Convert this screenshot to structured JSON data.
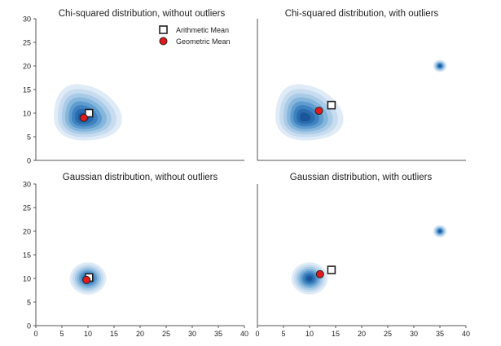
{
  "figure": {
    "legend": {
      "arithmetic_label": "Arithmetic Mean",
      "geometric_label": "Geometric Mean",
      "placement": "top-right of top-left panel"
    },
    "colors": {
      "density_light": "#dbe9f6",
      "density_dark": "#1f5fa6",
      "geometric_marker": "#e31a1c",
      "arithmetic_marker": "#ffffff",
      "axis": "#444444"
    }
  },
  "chart_data": [
    {
      "type": "heatmap",
      "title": "Chi-squared distribution, without outliers",
      "xlim": [
        0,
        40
      ],
      "ylim": [
        0,
        30
      ],
      "xticks": [],
      "yticks": [
        "0",
        "5",
        "10",
        "15",
        "20",
        "25",
        "30"
      ],
      "grid": false,
      "clusters": [
        {
          "x": 9,
          "y": 9,
          "sx": 6,
          "sy": 5.2,
          "skew": 1
        }
      ],
      "arithmetic_mean": {
        "x": 10.2,
        "y": 10.0
      },
      "geometric_mean": {
        "x": 9.2,
        "y": 9.0
      }
    },
    {
      "type": "heatmap",
      "title": "Chi-squared distribution, with outliers",
      "xlim": [
        0,
        40
      ],
      "ylim": [
        0,
        30
      ],
      "xticks": [],
      "yticks": [],
      "grid": false,
      "clusters": [
        {
          "x": 9,
          "y": 9,
          "sx": 6,
          "sy": 5.2,
          "skew": 1
        },
        {
          "x": 35,
          "y": 20,
          "sx": 1.3,
          "sy": 1.3,
          "skew": 0
        }
      ],
      "arithmetic_mean": {
        "x": 14.2,
        "y": 11.7
      },
      "geometric_mean": {
        "x": 11.8,
        "y": 10.5
      }
    },
    {
      "type": "heatmap",
      "title": "Gaussian distribution, without outliers",
      "xlim": [
        0,
        40
      ],
      "ylim": [
        0,
        30
      ],
      "xticks": [
        "0",
        "5",
        "10",
        "15",
        "20",
        "25",
        "30",
        "35",
        "40"
      ],
      "yticks": [
        "0",
        "5",
        "10",
        "15",
        "20",
        "25",
        "30"
      ],
      "grid": false,
      "clusters": [
        {
          "x": 10,
          "y": 10,
          "sx": 3.5,
          "sy": 3.4,
          "skew": 0
        }
      ],
      "arithmetic_mean": {
        "x": 10.2,
        "y": 10.2
      },
      "geometric_mean": {
        "x": 9.7,
        "y": 9.7
      }
    },
    {
      "type": "heatmap",
      "title": "Gaussian distribution, with outliers",
      "xlim": [
        0,
        40
      ],
      "ylim": [
        0,
        30
      ],
      "xticks": [
        "0",
        "5",
        "10",
        "15",
        "20",
        "25",
        "30",
        "35",
        "40"
      ],
      "yticks": [],
      "grid": false,
      "clusters": [
        {
          "x": 10,
          "y": 10,
          "sx": 3.5,
          "sy": 3.4,
          "skew": 0
        },
        {
          "x": 35,
          "y": 20,
          "sx": 1.3,
          "sy": 1.3,
          "skew": 0
        }
      ],
      "arithmetic_mean": {
        "x": 14.2,
        "y": 11.8
      },
      "geometric_mean": {
        "x": 12.0,
        "y": 10.9
      }
    }
  ]
}
